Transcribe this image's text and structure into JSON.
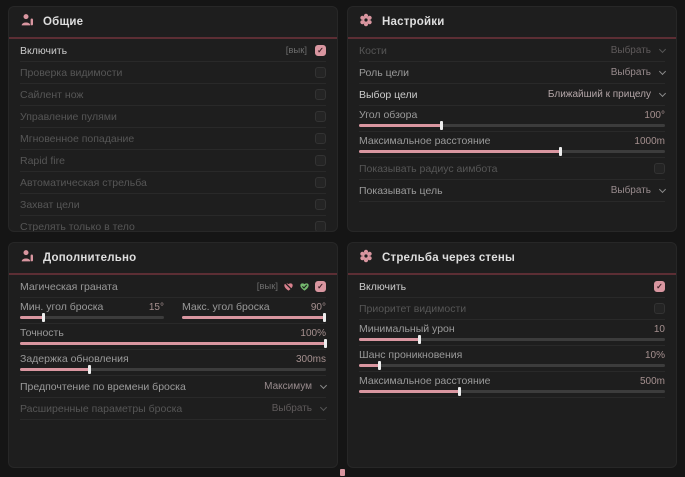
{
  "colors": {
    "accent": "#d996a0",
    "divider": "#5c2e34",
    "green": "#74b86e",
    "heart_pink": "#d9808d"
  },
  "general": {
    "title": "Общие",
    "rows": [
      {
        "label": "Включить",
        "tag": "[вык]",
        "checked": true
      },
      {
        "label": "Проверка видимости",
        "checked": false
      },
      {
        "label": "Сайлент нож",
        "checked": false
      },
      {
        "label": "Управление пулями",
        "checked": false
      },
      {
        "label": "Мгновенное попадание",
        "checked": false
      },
      {
        "label": "Rapid fire",
        "checked": false
      },
      {
        "label": "Автоматическая стрельба",
        "checked": false
      },
      {
        "label": "Захват цели",
        "checked": false
      },
      {
        "label": "Стрелять только в тело",
        "checked": false
      }
    ]
  },
  "settings": {
    "title": "Настройки",
    "rows": [
      {
        "label": "Кости",
        "value": "Выбрать"
      },
      {
        "label": "Роль цели",
        "value": "Выбрать"
      },
      {
        "label": "Выбор цели",
        "value": "Ближайший к прицелу"
      },
      {
        "label": "Угол обзора",
        "value": "100°",
        "percent": 27
      },
      {
        "label": "Максимальное расстояние",
        "value": "1000m",
        "percent": 66
      },
      {
        "label": "Показывать радиус аимбота",
        "checked": false
      },
      {
        "label": "Показывать цель",
        "value": "Выбрать"
      }
    ]
  },
  "additional": {
    "title": "Дополнительно",
    "rows": [
      {
        "label": "Магическая граната",
        "tag": "[вык]",
        "checked": true
      },
      {
        "left": {
          "label": "Мин. угол броска",
          "value": "15°",
          "percent": 17
        },
        "right": {
          "label": "Макс. угол броска",
          "value": "90°",
          "percent": 99
        }
      },
      {
        "label": "Точность",
        "value": "100%",
        "percent": 100
      },
      {
        "label": "Задержка обновления",
        "value": "300ms",
        "percent": 23
      },
      {
        "label": "Предпочтение по времени броска",
        "value": "Максимум"
      },
      {
        "label": "Расширенные параметры броска",
        "value": "Выбрать"
      }
    ]
  },
  "walls": {
    "title": "Стрельба через стены",
    "rows": [
      {
        "label": "Включить",
        "checked": true
      },
      {
        "label": "Приоритет видимости",
        "checked": false
      },
      {
        "label": "Минимальный урон",
        "value": "10",
        "percent": 20
      },
      {
        "label": "Шанс проникновения",
        "value": "10%",
        "percent": 7
      },
      {
        "label": "Максимальное расстояние",
        "value": "500m",
        "percent": 33
      }
    ]
  }
}
